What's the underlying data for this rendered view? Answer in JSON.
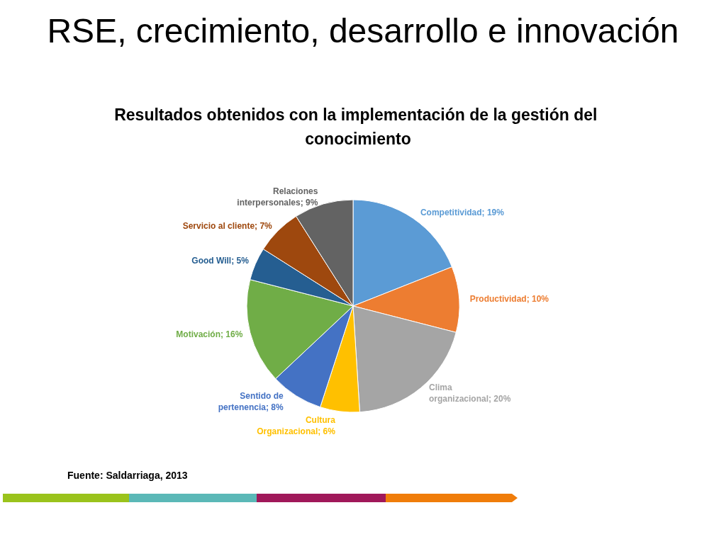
{
  "chart_data": {
    "type": "pie",
    "title": "RSE, crecimiento, desarrollo e innovación",
    "subtitle": "Resultados obtenidos con la implementación de la gestión del conocimiento",
    "categories": [
      "Competitividad",
      "Productividad",
      "Clima organizacional",
      "Cultura Organizacional",
      "Sentido de pertenencia",
      "Motivación",
      "Good Will",
      "Servicio al cliente",
      "Relaciones interpersonales"
    ],
    "values": [
      19,
      10,
      20,
      6,
      8,
      16,
      5,
      7,
      9
    ],
    "value_labels": [
      "19%",
      "10%",
      "20%",
      "6%",
      "8%",
      "16%",
      "5%",
      "7%",
      "9%"
    ],
    "colors": [
      "#5b9bd5",
      "#ed7d31",
      "#a5a5a5",
      "#ffc000",
      "#4472c4",
      "#70ad47",
      "#255e91",
      "#9e480e",
      "#636363"
    ],
    "annotations": [
      "Fuente: Saldarriaga, 2013"
    ]
  }
}
